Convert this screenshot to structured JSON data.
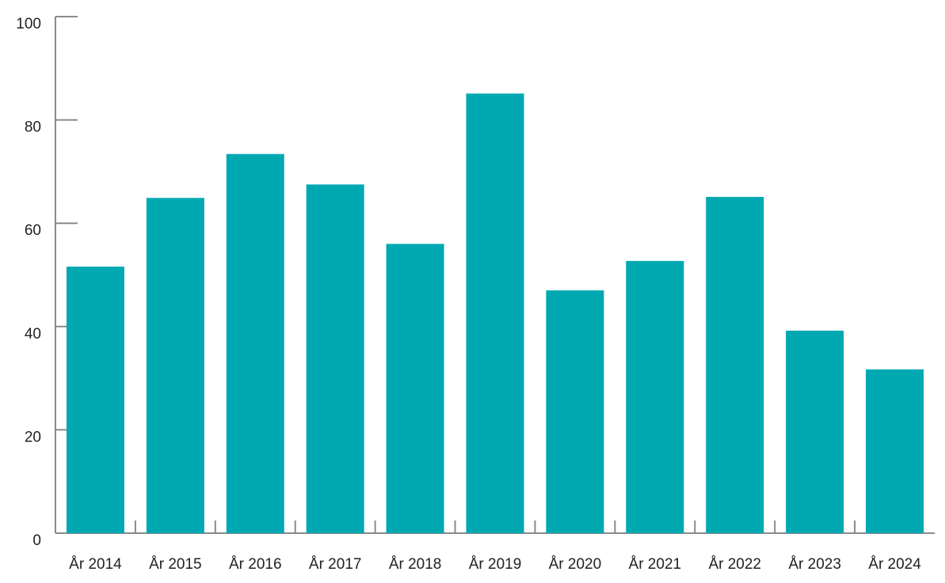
{
  "chart_data": {
    "type": "bar",
    "categories": [
      "År 2014",
      "År 2015",
      "År 2016",
      "År 2017",
      "År 2018",
      "År 2019",
      "År 2020",
      "År 2021",
      "År 2022",
      "År 2023",
      "År 2024"
    ],
    "values": [
      51.6,
      64.9,
      73.4,
      67.5,
      56,
      85.1,
      47,
      52.7,
      65.1,
      39.2,
      31.7
    ],
    "color": "#00a9b2",
    "ylim": [
      0,
      100
    ],
    "yticks": [
      0,
      20,
      40,
      60,
      80,
      100
    ],
    "grid": false
  }
}
